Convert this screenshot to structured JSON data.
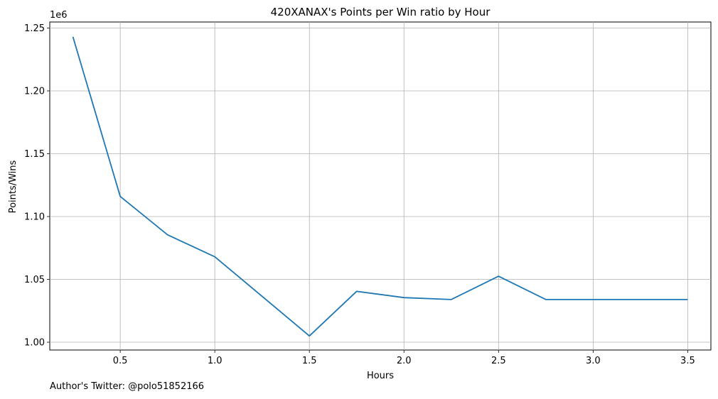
{
  "chart_data": {
    "type": "line",
    "title": "420XANAX's Points per Win ratio by Hour",
    "xlabel": "Hours",
    "ylabel": "Points/Wins",
    "y_offset_label": "1e6",
    "grid": true,
    "xlim": [
      0.1275,
      3.6225
    ],
    "ylim": [
      0.9938,
      1.2548
    ],
    "x_ticks": [
      0.5,
      1.0,
      1.5,
      2.0,
      2.5,
      3.0,
      3.5
    ],
    "x_tick_labels": [
      "0.5",
      "1.0",
      "1.5",
      "2.0",
      "2.5",
      "3.0",
      "3.5"
    ],
    "y_ticks": [
      1.0,
      1.05,
      1.1,
      1.15,
      1.2,
      1.25
    ],
    "y_tick_labels": [
      "1.00",
      "1.05",
      "1.10",
      "1.15",
      "1.20",
      "1.25"
    ],
    "series": [
      {
        "color": "#1f77b4",
        "x": [
          0.25,
          0.5,
          0.75,
          1.0,
          1.5,
          1.75,
          2.0,
          2.25,
          2.5,
          2.75,
          3.0,
          3.25,
          3.5
        ],
        "y": [
          1.243,
          1.116,
          1.0855,
          1.068,
          1.005,
          1.0405,
          1.0355,
          1.034,
          1.0525,
          1.034,
          1.034,
          1.034,
          1.034
        ]
      }
    ]
  },
  "footnote": "Author's Twitter: @polo51852166"
}
